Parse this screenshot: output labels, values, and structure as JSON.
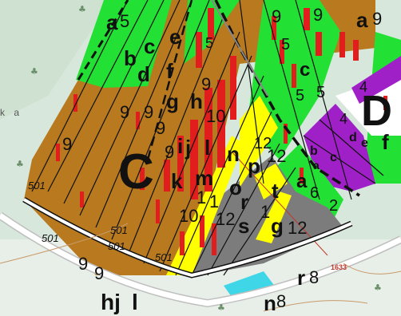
{
  "map": {
    "place_name_fragment": "k a",
    "road_numbers": [
      "501",
      "501",
      "501",
      "501",
      "501"
    ],
    "reference_marker": "1633",
    "compartments": {
      "C": "C",
      "D": "D",
      "a5": "a",
      "a5_num": "5",
      "a9": "a",
      "a9_num": "9"
    },
    "subcompartment_letters": [
      "b",
      "c",
      "d",
      "e",
      "f",
      "g",
      "h",
      "i",
      "j",
      "k",
      "l",
      "m",
      "n",
      "o",
      "p",
      "r",
      "s",
      "t",
      "a",
      "g",
      "c",
      "b",
      "c",
      "d",
      "e",
      "f",
      "a"
    ],
    "subcompartment_numbers": [
      "9",
      "9",
      "9",
      "9",
      "9",
      "9",
      "10",
      "9",
      "5",
      "5",
      "5",
      "5",
      "10",
      "1",
      "12",
      "1",
      "12",
      "12",
      "6",
      "2",
      "12",
      "9",
      "1",
      "4",
      "4"
    ],
    "bottom_labels": {
      "hj": "hj",
      "l": "l",
      "num_9a": "9",
      "num_9b": "9",
      "r8_letter": "r",
      "r8_num": "8",
      "n8_letter": "n",
      "n8_num": "8",
      "tree_symbol": "♣"
    },
    "colors": {
      "brown_stand": "#b8791f",
      "green_stand": "#22e034",
      "yellow_stand": "#ffff00",
      "grey_stand": "#7c7c7c",
      "purple_stand": "#a020c8",
      "cyan_stand": "#3fd6e8",
      "red_hatch": "#e11d1d",
      "background_forest": "#d7e7dc"
    }
  }
}
